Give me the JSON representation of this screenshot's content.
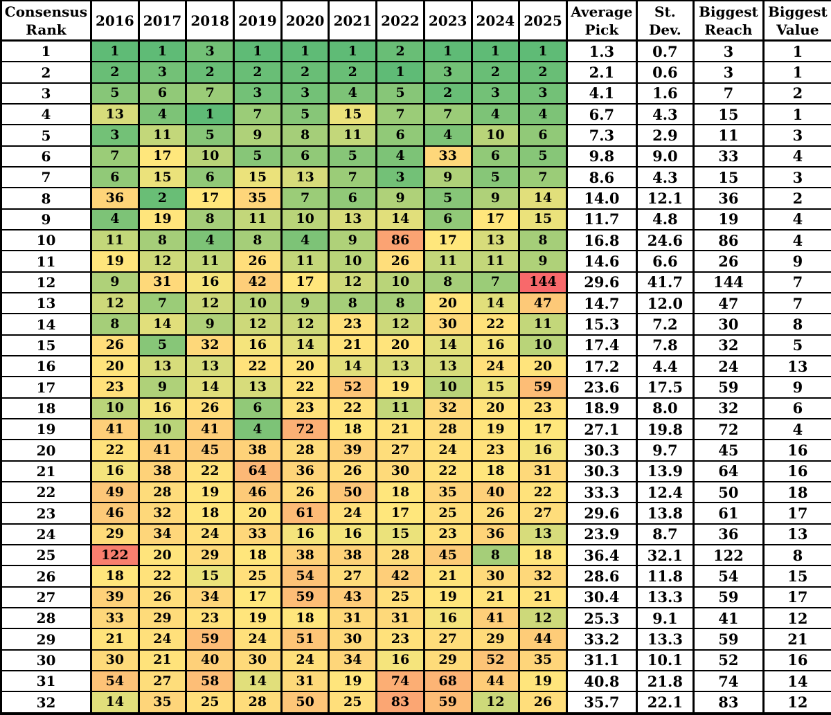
{
  "chart_data": {
    "type": "heatmap",
    "corner_header_lines": [
      "Consensus",
      "Rank"
    ],
    "year_columns": [
      "2016",
      "2017",
      "2018",
      "2019",
      "2020",
      "2021",
      "2022",
      "2023",
      "2024",
      "2025"
    ],
    "stat_headers": [
      {
        "id": "average-pick",
        "lines": [
          "Average",
          "Pick"
        ]
      },
      {
        "id": "st-dev",
        "lines": [
          "St.",
          "Dev."
        ]
      },
      {
        "id": "biggest-reach",
        "lines": [
          "Biggest",
          "Reach"
        ]
      },
      {
        "id": "biggest-value",
        "lines": [
          "Biggest",
          "Value"
        ]
      }
    ],
    "colorscale": {
      "min_color": "#5FBB76",
      "mid_color": "#FFE77C",
      "max_color": "#F8696B",
      "midpoint": "median"
    },
    "rows": [
      {
        "rank": "1",
        "picks": [
          1,
          1,
          3,
          1,
          1,
          1,
          2,
          1,
          1,
          1
        ],
        "average_pick": "1.3",
        "st_dev": "0.7",
        "biggest_reach": "3",
        "biggest_value": "1"
      },
      {
        "rank": "2",
        "picks": [
          2,
          3,
          2,
          2,
          2,
          2,
          1,
          3,
          2,
          2
        ],
        "average_pick": "2.1",
        "st_dev": "0.6",
        "biggest_reach": "3",
        "biggest_value": "1"
      },
      {
        "rank": "3",
        "picks": [
          5,
          6,
          7,
          3,
          3,
          4,
          5,
          2,
          3,
          3
        ],
        "average_pick": "4.1",
        "st_dev": "1.6",
        "biggest_reach": "7",
        "biggest_value": "2"
      },
      {
        "rank": "4",
        "picks": [
          13,
          4,
          1,
          7,
          5,
          15,
          7,
          7,
          4,
          4
        ],
        "average_pick": "6.7",
        "st_dev": "4.3",
        "biggest_reach": "15",
        "biggest_value": "1"
      },
      {
        "rank": "5",
        "picks": [
          3,
          11,
          5,
          9,
          8,
          11,
          6,
          4,
          10,
          6
        ],
        "average_pick": "7.3",
        "st_dev": "2.9",
        "biggest_reach": "11",
        "biggest_value": "3"
      },
      {
        "rank": "6",
        "picks": [
          7,
          17,
          10,
          5,
          6,
          5,
          4,
          33,
          6,
          5
        ],
        "average_pick": "9.8",
        "st_dev": "9.0",
        "biggest_reach": "33",
        "biggest_value": "4"
      },
      {
        "rank": "7",
        "picks": [
          6,
          15,
          6,
          15,
          13,
          7,
          3,
          9,
          5,
          7
        ],
        "average_pick": "8.6",
        "st_dev": "4.3",
        "biggest_reach": "15",
        "biggest_value": "3"
      },
      {
        "rank": "8",
        "picks": [
          36,
          2,
          17,
          35,
          7,
          6,
          9,
          5,
          9,
          14
        ],
        "average_pick": "14.0",
        "st_dev": "12.1",
        "biggest_reach": "36",
        "biggest_value": "2"
      },
      {
        "rank": "9",
        "picks": [
          4,
          19,
          8,
          11,
          10,
          13,
          14,
          6,
          17,
          15
        ],
        "average_pick": "11.7",
        "st_dev": "4.8",
        "biggest_reach": "19",
        "biggest_value": "4"
      },
      {
        "rank": "10",
        "picks": [
          11,
          8,
          4,
          8,
          4,
          9,
          86,
          17,
          13,
          8
        ],
        "average_pick": "16.8",
        "st_dev": "24.6",
        "biggest_reach": "86",
        "biggest_value": "4"
      },
      {
        "rank": "11",
        "picks": [
          19,
          12,
          11,
          26,
          11,
          10,
          26,
          11,
          11,
          9
        ],
        "average_pick": "14.6",
        "st_dev": "6.6",
        "biggest_reach": "26",
        "biggest_value": "9"
      },
      {
        "rank": "12",
        "picks": [
          9,
          31,
          16,
          42,
          17,
          12,
          10,
          8,
          7,
          144
        ],
        "average_pick": "29.6",
        "st_dev": "41.7",
        "biggest_reach": "144",
        "biggest_value": "7"
      },
      {
        "rank": "13",
        "picks": [
          12,
          7,
          12,
          10,
          9,
          8,
          8,
          20,
          14,
          47
        ],
        "average_pick": "14.7",
        "st_dev": "12.0",
        "biggest_reach": "47",
        "biggest_value": "7"
      },
      {
        "rank": "14",
        "picks": [
          8,
          14,
          9,
          12,
          12,
          23,
          12,
          30,
          22,
          11
        ],
        "average_pick": "15.3",
        "st_dev": "7.2",
        "biggest_reach": "30",
        "biggest_value": "8"
      },
      {
        "rank": "15",
        "picks": [
          26,
          5,
          32,
          16,
          14,
          21,
          20,
          14,
          16,
          10
        ],
        "average_pick": "17.4",
        "st_dev": "7.8",
        "biggest_reach": "32",
        "biggest_value": "5"
      },
      {
        "rank": "16",
        "picks": [
          20,
          13,
          13,
          22,
          20,
          14,
          13,
          13,
          24,
          20
        ],
        "average_pick": "17.2",
        "st_dev": "4.4",
        "biggest_reach": "24",
        "biggest_value": "13"
      },
      {
        "rank": "17",
        "picks": [
          23,
          9,
          14,
          13,
          22,
          52,
          19,
          10,
          15,
          59
        ],
        "average_pick": "23.6",
        "st_dev": "17.5",
        "biggest_reach": "59",
        "biggest_value": "9"
      },
      {
        "rank": "18",
        "picks": [
          10,
          16,
          26,
          6,
          23,
          22,
          11,
          32,
          20,
          23
        ],
        "average_pick": "18.9",
        "st_dev": "8.0",
        "biggest_reach": "32",
        "biggest_value": "6"
      },
      {
        "rank": "19",
        "picks": [
          41,
          10,
          41,
          4,
          72,
          18,
          21,
          28,
          19,
          17
        ],
        "average_pick": "27.1",
        "st_dev": "19.8",
        "biggest_reach": "72",
        "biggest_value": "4"
      },
      {
        "rank": "20",
        "picks": [
          22,
          41,
          45,
          38,
          28,
          39,
          27,
          24,
          23,
          16
        ],
        "average_pick": "30.3",
        "st_dev": "9.7",
        "biggest_reach": "45",
        "biggest_value": "16"
      },
      {
        "rank": "21",
        "picks": [
          16,
          38,
          22,
          64,
          36,
          26,
          30,
          22,
          18,
          31
        ],
        "average_pick": "30.3",
        "st_dev": "13.9",
        "biggest_reach": "64",
        "biggest_value": "16"
      },
      {
        "rank": "22",
        "picks": [
          49,
          28,
          19,
          46,
          26,
          50,
          18,
          35,
          40,
          22
        ],
        "average_pick": "33.3",
        "st_dev": "12.4",
        "biggest_reach": "50",
        "biggest_value": "18"
      },
      {
        "rank": "23",
        "picks": [
          46,
          32,
          18,
          20,
          61,
          24,
          17,
          25,
          26,
          27
        ],
        "average_pick": "29.6",
        "st_dev": "13.8",
        "biggest_reach": "61",
        "biggest_value": "17"
      },
      {
        "rank": "24",
        "picks": [
          29,
          34,
          24,
          33,
          16,
          16,
          15,
          23,
          36,
          13
        ],
        "average_pick": "23.9",
        "st_dev": "8.7",
        "biggest_reach": "36",
        "biggest_value": "13"
      },
      {
        "rank": "25",
        "picks": [
          122,
          20,
          29,
          18,
          38,
          38,
          28,
          45,
          8,
          18
        ],
        "average_pick": "36.4",
        "st_dev": "32.1",
        "biggest_reach": "122",
        "biggest_value": "8"
      },
      {
        "rank": "26",
        "picks": [
          18,
          22,
          15,
          25,
          54,
          27,
          42,
          21,
          30,
          32
        ],
        "average_pick": "28.6",
        "st_dev": "11.8",
        "biggest_reach": "54",
        "biggest_value": "15"
      },
      {
        "rank": "27",
        "picks": [
          39,
          26,
          34,
          17,
          59,
          43,
          25,
          19,
          21,
          21
        ],
        "average_pick": "30.4",
        "st_dev": "13.3",
        "biggest_reach": "59",
        "biggest_value": "17"
      },
      {
        "rank": "28",
        "picks": [
          33,
          29,
          23,
          19,
          18,
          31,
          31,
          16,
          41,
          12
        ],
        "average_pick": "25.3",
        "st_dev": "9.1",
        "biggest_reach": "41",
        "biggest_value": "12"
      },
      {
        "rank": "29",
        "picks": [
          21,
          24,
          59,
          24,
          51,
          30,
          23,
          27,
          29,
          44
        ],
        "average_pick": "33.2",
        "st_dev": "13.3",
        "biggest_reach": "59",
        "biggest_value": "21"
      },
      {
        "rank": "30",
        "picks": [
          30,
          21,
          40,
          30,
          24,
          34,
          16,
          29,
          52,
          35
        ],
        "average_pick": "31.1",
        "st_dev": "10.1",
        "biggest_reach": "52",
        "biggest_value": "16"
      },
      {
        "rank": "31",
        "picks": [
          54,
          27,
          58,
          14,
          31,
          19,
          74,
          68,
          44,
          19
        ],
        "average_pick": "40.8",
        "st_dev": "21.8",
        "biggest_reach": "74",
        "biggest_value": "14"
      },
      {
        "rank": "32",
        "picks": [
          14,
          35,
          25,
          28,
          50,
          25,
          83,
          59,
          12,
          26
        ],
        "average_pick": "35.7",
        "st_dev": "22.1",
        "biggest_reach": "83",
        "biggest_value": "12"
      }
    ]
  }
}
